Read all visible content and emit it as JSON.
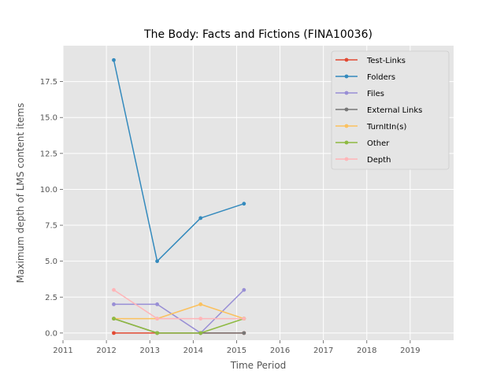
{
  "chart_data": {
    "type": "line",
    "title": "The Body: Facts and Fictions (FINA10036)",
    "xlabel": "Time Period",
    "ylabel": "Maximum depth of LMS content items",
    "xlim": [
      2011,
      2020
    ],
    "ylim": [
      -0.5,
      20
    ],
    "xticks": [
      2011,
      2012,
      2013,
      2014,
      2015,
      2016,
      2017,
      2018,
      2019
    ],
    "xtick_labels": [
      "2011",
      "2012",
      "2013",
      "2014",
      "2015",
      "2016",
      "2017",
      "2018",
      "2019"
    ],
    "yticks": [
      0,
      2.5,
      5,
      7.5,
      10,
      12.5,
      15,
      17.5
    ],
    "ytick_labels": [
      "0.0",
      "2.5",
      "5.0",
      "7.5",
      "10.0",
      "12.5",
      "15.0",
      "17.5"
    ],
    "x": [
      2012.17,
      2013.17,
      2014.17,
      2015.17
    ],
    "grid": true,
    "legend_position": "top-right",
    "series": [
      {
        "name": "Test-Links",
        "color": "#e24a33",
        "values": [
          0,
          0,
          0,
          0
        ]
      },
      {
        "name": "Folders",
        "color": "#348abd",
        "values": [
          19,
          5,
          8,
          9
        ]
      },
      {
        "name": "Files",
        "color": "#988ed5",
        "values": [
          2,
          2,
          0,
          3
        ]
      },
      {
        "name": "External Links",
        "color": "#777777",
        "values": [
          1,
          0,
          0,
          0
        ]
      },
      {
        "name": "TurnItIn(s)",
        "color": "#fbc15e",
        "values": [
          1,
          1,
          2,
          1
        ]
      },
      {
        "name": "Other",
        "color": "#8eba42",
        "values": [
          1,
          0,
          0,
          1
        ]
      },
      {
        "name": "Depth",
        "color": "#ffb5b8",
        "values": [
          3,
          1,
          1,
          1
        ]
      }
    ]
  }
}
